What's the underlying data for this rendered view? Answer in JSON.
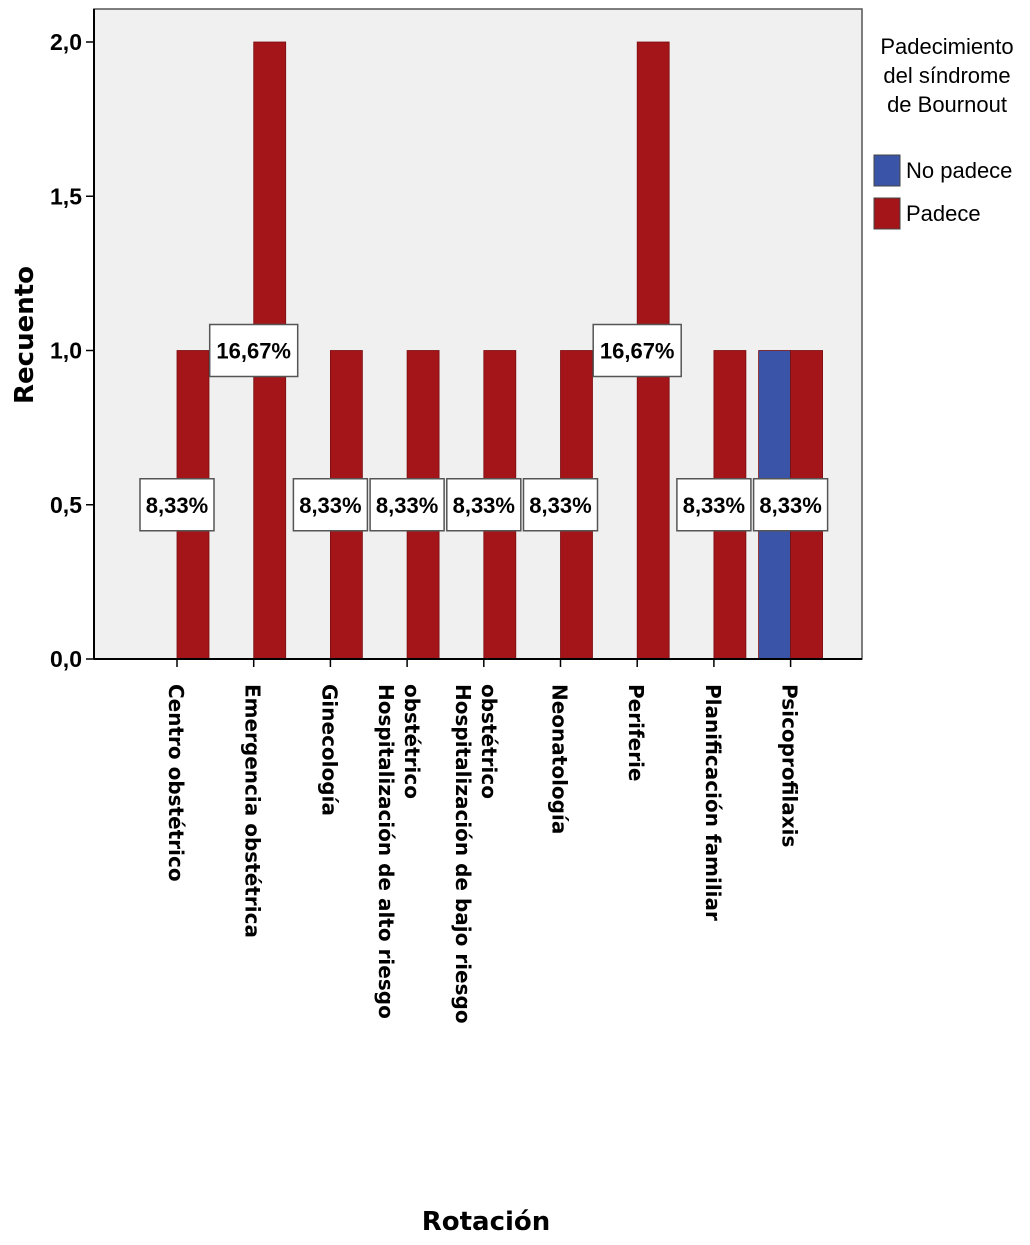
{
  "chart_data": {
    "type": "bar",
    "xlabel": "Rotación",
    "ylabel": "Recuento",
    "ylim": [
      0,
      2
    ],
    "yticks": [
      "0,0",
      "0,5",
      "1,0",
      "1,5",
      "2,0"
    ],
    "grid": false,
    "categories": [
      [
        "Centro obstétrico"
      ],
      [
        "Emergencia obstétrica"
      ],
      [
        "Ginecología"
      ],
      [
        "Hospitalización de alto riesgo",
        "obstétrico"
      ],
      [
        "Hospitalización de bajo riesgo",
        "obstétrico"
      ],
      [
        "Neonatología"
      ],
      [
        "Periferie"
      ],
      [
        "Planificación familiar"
      ],
      [
        "Psicoprofilaxis"
      ]
    ],
    "series": [
      {
        "name": "No padece",
        "color": "#3a55a8",
        "values": [
          0,
          0,
          0,
          0,
          0,
          0,
          0,
          0,
          1
        ]
      },
      {
        "name": "Padece",
        "color": "#a31518",
        "values": [
          1,
          2,
          1,
          1,
          1,
          1,
          2,
          1,
          1
        ]
      }
    ],
    "data_labels": [
      {
        "category": 0,
        "text": "8,33%",
        "at": 0.5
      },
      {
        "category": 1,
        "text": "16,67%",
        "at": 1.0
      },
      {
        "category": 2,
        "text": "8,33%",
        "at": 0.5
      },
      {
        "category": 3,
        "text": "8,33%",
        "at": 0.5
      },
      {
        "category": 4,
        "text": "8,33%",
        "at": 0.5
      },
      {
        "category": 5,
        "text": "8,33%",
        "at": 0.5
      },
      {
        "category": 6,
        "text": "16,67%",
        "at": 1.0
      },
      {
        "category": 7,
        "text": "8,33%",
        "at": 0.5
      },
      {
        "category": 8,
        "text": "8,33%",
        "at": 0.5
      }
    ],
    "legend": {
      "title": [
        "Padecimiento",
        "del síndrome",
        "de Bournout"
      ],
      "position": "top-right"
    },
    "plot_background": "#f0f0f0"
  }
}
